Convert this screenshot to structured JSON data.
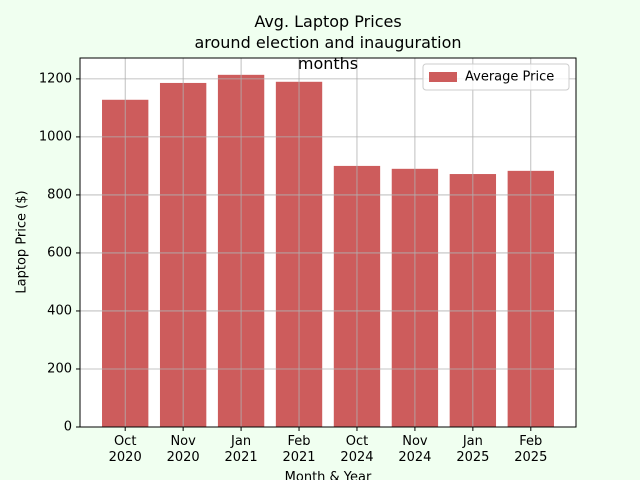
{
  "chart_data": {
    "type": "bar",
    "title": "Avg. Laptop Prices\naround election and inauguration months",
    "xlabel": "Month & Year",
    "ylabel": "Laptop Price ($)",
    "categories": [
      "Oct\n2020",
      "Nov\n2020",
      "Jan\n2021",
      "Feb\n2021",
      "Oct\n2024",
      "Nov\n2024",
      "Jan\n2025",
      "Feb\n2025"
    ],
    "series": [
      {
        "name": "Average Price",
        "color": "#cd5c5c",
        "values": [
          1128,
          1186,
          1214,
          1190,
          900,
          890,
          872,
          883
        ]
      }
    ],
    "ylim": [
      0,
      1272
    ],
    "yticks": [
      0,
      200,
      400,
      600,
      800,
      1000,
      1200
    ],
    "grid": true,
    "legend": "upper right"
  }
}
